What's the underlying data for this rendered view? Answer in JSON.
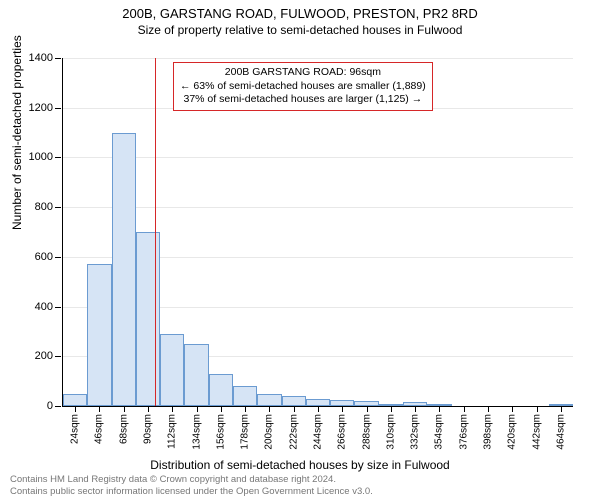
{
  "title_main": "200B, GARSTANG ROAD, FULWOOD, PRESTON, PR2 8RD",
  "title_sub": "Size of property relative to semi-detached houses in Fulwood",
  "y_axis_title": "Number of semi-detached properties",
  "x_axis_title": "Distribution of semi-detached houses by size in Fulwood",
  "chart": {
    "type": "histogram",
    "ylim": [
      0,
      1400
    ],
    "ytick_step": 200,
    "x_start": 24,
    "x_step": 22,
    "x_count": 21,
    "x_suffix": "sqm",
    "bar_fill": "#d6e4f5",
    "bar_stroke": "#6b9bd1",
    "grid_color": "#e8e8e8",
    "background_color": "#ffffff",
    "values": [
      50,
      570,
      1100,
      700,
      290,
      250,
      130,
      80,
      50,
      40,
      30,
      25,
      20,
      5,
      15,
      10,
      0,
      0,
      0,
      0,
      3
    ],
    "marker_value": 96,
    "marker_color": "#d62728"
  },
  "info_box": {
    "line1": "200B GARSTANG ROAD: 96sqm",
    "line2": "← 63% of semi-detached houses are smaller (1,889)",
    "line3": "37% of semi-detached houses are larger (1,125) →"
  },
  "footer": {
    "line1": "Contains HM Land Registry data © Crown copyright and database right 2024.",
    "line2": "Contains public sector information licensed under the Open Government Licence v3.0."
  }
}
